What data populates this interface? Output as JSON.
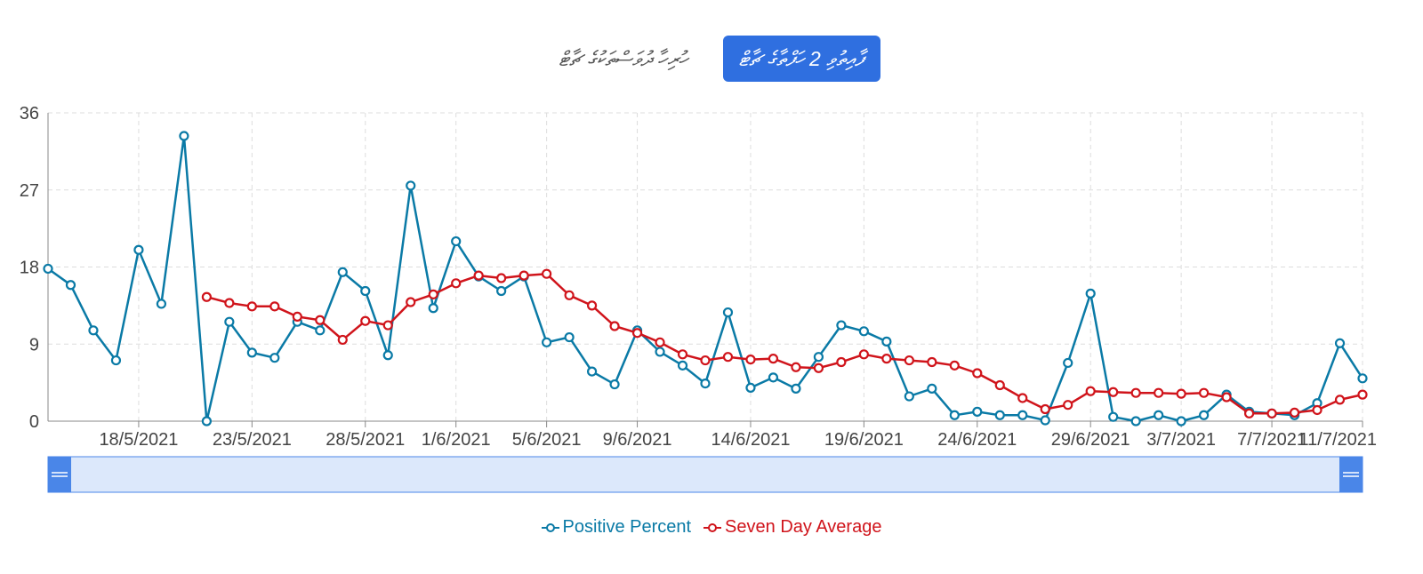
{
  "toggles": [
    {
      "label": "ހުރިހާ ދުވަސްތަކުގެ ޗާޓް",
      "active": false
    },
    {
      "label": "ފާއިތުވި 2 ހަފްތާގެ ޗާޓް",
      "active": true
    }
  ],
  "colors": {
    "positive": "#0a7aa6",
    "average": "#d0141b",
    "navigator_fill": "#dce8fb",
    "navigator_handle": "#4a86e8",
    "grid": "#dddddd"
  },
  "legend": [
    {
      "name": "Positive Percent",
      "color": "#0a7aa6"
    },
    {
      "name": "Seven Day Average",
      "color": "#d0141b"
    }
  ],
  "chart_data": {
    "type": "line",
    "title": "",
    "xlabel": "",
    "ylabel": "",
    "ylim": [
      0,
      36
    ],
    "yticks": [
      0,
      9,
      18,
      27,
      36
    ],
    "grid": true,
    "legend_position": "bottom-center",
    "x": [
      "14/5/2021",
      "15/5/2021",
      "16/5/2021",
      "17/5/2021",
      "18/5/2021",
      "19/5/2021",
      "20/5/2021",
      "21/5/2021",
      "22/5/2021",
      "23/5/2021",
      "24/5/2021",
      "25/5/2021",
      "26/5/2021",
      "27/5/2021",
      "28/5/2021",
      "29/5/2021",
      "30/5/2021",
      "31/5/2021",
      "1/6/2021",
      "2/6/2021",
      "3/6/2021",
      "4/6/2021",
      "5/6/2021",
      "6/6/2021",
      "7/6/2021",
      "8/6/2021",
      "9/6/2021",
      "10/6/2021",
      "11/6/2021",
      "12/6/2021",
      "13/6/2021",
      "14/6/2021",
      "15/6/2021",
      "16/6/2021",
      "17/6/2021",
      "18/6/2021",
      "19/6/2021",
      "20/6/2021",
      "21/6/2021",
      "22/6/2021",
      "23/6/2021",
      "24/6/2021",
      "25/6/2021",
      "26/6/2021",
      "27/6/2021",
      "28/6/2021",
      "29/6/2021",
      "30/6/2021",
      "1/7/2021",
      "2/7/2021",
      "3/7/2021",
      "4/7/2021",
      "5/7/2021",
      "6/7/2021",
      "7/7/2021",
      "8/7/2021",
      "9/7/2021",
      "10/7/2021",
      "11/7/2021"
    ],
    "xtick_labels": [
      "18/5/2021",
      "23/5/2021",
      "28/5/2021",
      "1/6/2021",
      "5/6/2021",
      "9/6/2021",
      "14/6/2021",
      "19/6/2021",
      "24/6/2021",
      "29/6/2021",
      "3/7/2021",
      "7/7/2021",
      "11/7/2021"
    ],
    "series": [
      {
        "name": "Positive Percent",
        "values": [
          17.8,
          15.9,
          10.6,
          7.1,
          20.0,
          13.7,
          33.3,
          0.0,
          11.6,
          8.0,
          7.4,
          11.6,
          10.6,
          17.4,
          15.2,
          7.7,
          27.5,
          13.2,
          21.0,
          16.9,
          15.2,
          16.9,
          9.2,
          9.8,
          5.8,
          4.3,
          10.6,
          8.1,
          6.5,
          4.4,
          12.7,
          3.9,
          5.1,
          3.8,
          7.5,
          11.2,
          10.5,
          9.3,
          2.9,
          3.8,
          0.7,
          1.1,
          0.7,
          0.7,
          0.1,
          6.8,
          14.9,
          0.5,
          0.0,
          0.7,
          0.0,
          0.7,
          3.1,
          1.1,
          0.9,
          0.7,
          2.1,
          9.1,
          5.0
        ]
      },
      {
        "name": "Seven Day Average",
        "values": [
          null,
          null,
          null,
          null,
          null,
          null,
          null,
          14.5,
          13.8,
          13.4,
          13.4,
          12.2,
          11.8,
          9.5,
          11.7,
          11.2,
          13.9,
          14.8,
          16.1,
          17.0,
          16.7,
          17.0,
          17.2,
          14.7,
          13.5,
          11.1,
          10.3,
          9.2,
          7.8,
          7.1,
          7.5,
          7.2,
          7.3,
          6.3,
          6.2,
          6.9,
          7.8,
          7.3,
          7.1,
          6.9,
          6.5,
          5.6,
          4.2,
          2.7,
          1.4,
          1.9,
          3.5,
          3.4,
          3.3,
          3.3,
          3.2,
          3.3,
          2.8,
          0.9,
          0.9,
          1.0,
          1.3,
          2.5,
          3.1
        ]
      }
    ]
  }
}
